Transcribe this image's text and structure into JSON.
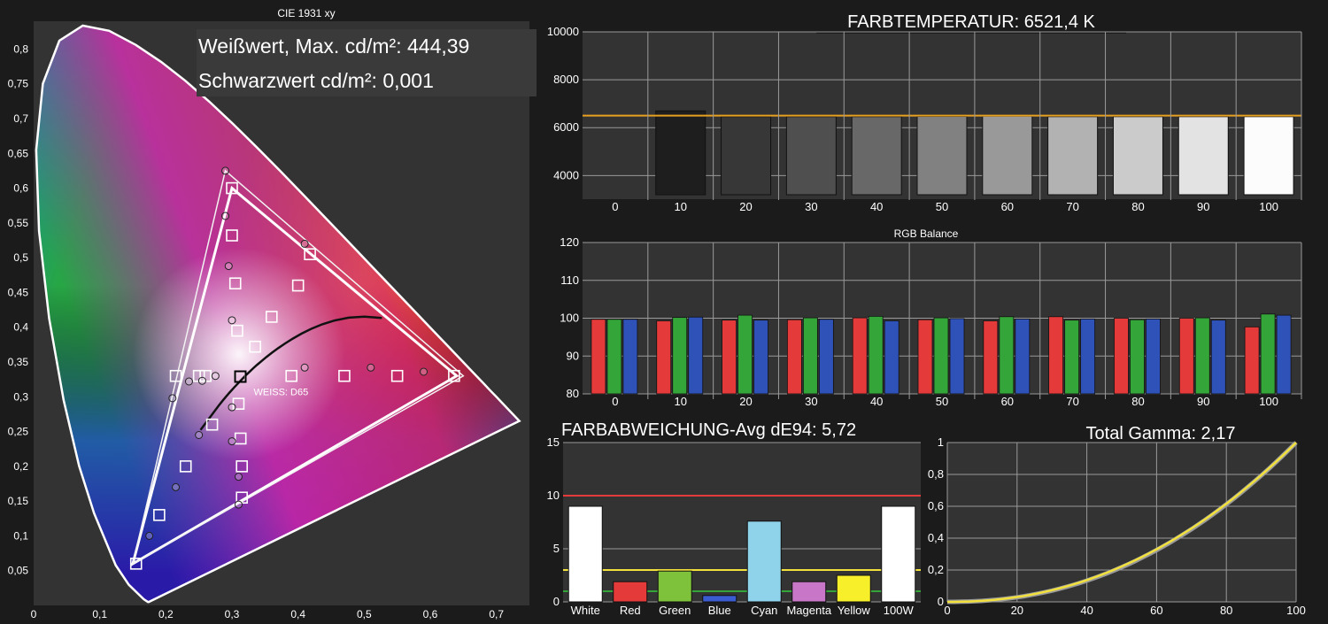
{
  "colors": {
    "bg": "#1b1b1b",
    "panel": "#333333",
    "grid": "#9a9a9a",
    "red": "#e53a3a",
    "green": "#34a538",
    "blue": "#2f52b8",
    "yellow": "#f2e13c",
    "orange": "#e8a020"
  },
  "chart_data": [
    {
      "type": "scatter",
      "title": "CIE 1931 xy",
      "annotations": [
        "Weißwert, Max. cd/m²: 444,39",
        "Schwarzwert cd/m²: 0,001",
        "WEISS: D65"
      ],
      "xlim": [
        0,
        0.75
      ],
      "ylim": [
        0,
        0.84
      ],
      "x_ticks": [
        "0",
        "0,1",
        "0,2",
        "0,3",
        "0,4",
        "0,5",
        "0,6",
        "0,7"
      ],
      "y_ticks": [
        "0,05",
        "0,1",
        "0,15",
        "0,2",
        "0,25",
        "0,3",
        "0,35",
        "0,4",
        "0,45",
        "0,5",
        "0,55",
        "0,6",
        "0,65",
        "0,7",
        "0,75",
        "0,8"
      ],
      "gamut_reference": [
        [
          0.64,
          0.33
        ],
        [
          0.3,
          0.6
        ],
        [
          0.15,
          0.06
        ]
      ],
      "gamut_measured": [
        [
          0.65,
          0.33
        ],
        [
          0.29,
          0.625
        ],
        [
          0.15,
          0.06
        ]
      ],
      "targets": [
        [
          0.3,
          0.6
        ],
        [
          0.3,
          0.532
        ],
        [
          0.305,
          0.463
        ],
        [
          0.308,
          0.395
        ],
        [
          0.312,
          0.329
        ],
        [
          0.4,
          0.46
        ],
        [
          0.36,
          0.415
        ],
        [
          0.335,
          0.372
        ],
        [
          0.418,
          0.505
        ],
        [
          0.39,
          0.33
        ],
        [
          0.47,
          0.33
        ],
        [
          0.55,
          0.33
        ],
        [
          0.636,
          0.33
        ],
        [
          0.27,
          0.26
        ],
        [
          0.31,
          0.29
        ],
        [
          0.313,
          0.24
        ],
        [
          0.315,
          0.2
        ],
        [
          0.315,
          0.155
        ],
        [
          0.23,
          0.2
        ],
        [
          0.19,
          0.13
        ],
        [
          0.155,
          0.06
        ],
        [
          0.215,
          0.33
        ],
        [
          0.25,
          0.33
        ],
        [
          0.26,
          0.33
        ]
      ],
      "measured": [
        [
          0.29,
          0.625
        ],
        [
          0.29,
          0.56
        ],
        [
          0.295,
          0.488
        ],
        [
          0.3,
          0.41
        ],
        [
          0.41,
          0.52
        ],
        [
          0.41,
          0.342
        ],
        [
          0.51,
          0.342
        ],
        [
          0.59,
          0.336
        ],
        [
          0.21,
          0.298
        ],
        [
          0.235,
          0.322
        ],
        [
          0.255,
          0.323
        ],
        [
          0.275,
          0.33
        ],
        [
          0.3,
          0.285
        ],
        [
          0.3,
          0.236
        ],
        [
          0.31,
          0.185
        ],
        [
          0.31,
          0.145
        ],
        [
          0.25,
          0.245
        ],
        [
          0.215,
          0.17
        ],
        [
          0.175,
          0.1
        ]
      ],
      "white_point": [
        0.3127,
        0.329
      ]
    },
    {
      "type": "bar",
      "title": "FARBTEMPERATUR: 6521,4 K",
      "categories": [
        "0",
        "10",
        "20",
        "30",
        "40",
        "50",
        "60",
        "70",
        "80",
        "90",
        "100"
      ],
      "values": [
        null,
        6700,
        6460,
        6460,
        6460,
        6470,
        6480,
        6460,
        6460,
        6460,
        6460
      ],
      "target": 6504,
      "ylim": [
        3200,
        10000
      ],
      "y_ticks": [
        "4000",
        "6000",
        "8000",
        "10000"
      ]
    },
    {
      "type": "bar",
      "title": "RGB Balance",
      "categories": [
        "0",
        "10",
        "20",
        "30",
        "40",
        "50",
        "60",
        "70",
        "80",
        "90",
        "100"
      ],
      "series": [
        {
          "values": [
            99.7,
            99.3,
            99.5,
            99.6,
            100.1,
            99.6,
            99.3,
            100.4,
            100.0,
            100.0,
            97.7
          ]
        },
        {
          "values": [
            99.7,
            100.2,
            100.8,
            100.1,
            100.5,
            100.1,
            100.4,
            99.5,
            99.6,
            100.1,
            101.1
          ]
        },
        {
          "values": [
            99.7,
            100.3,
            99.5,
            99.7,
            99.3,
            99.9,
            99.8,
            99.8,
            99.8,
            99.5,
            100.8
          ]
        }
      ],
      "ylim": [
        80,
        120
      ],
      "y_ticks": [
        "80",
        "90",
        "100",
        "110",
        "120"
      ]
    },
    {
      "type": "bar",
      "title": "FARBABWEICHUNG-Avg dE94: 5,72",
      "categories": [
        "White",
        "Red",
        "Green",
        "Blue",
        "Cyan",
        "Magenta",
        "Yellow",
        "100W"
      ],
      "values": [
        9.0,
        1.9,
        2.9,
        0.6,
        7.6,
        1.9,
        2.5,
        9.0
      ],
      "thresholds": [
        10,
        3,
        1
      ],
      "ylim": [
        0,
        15
      ],
      "y_ticks": [
        "0",
        "5",
        "10",
        "15"
      ]
    },
    {
      "type": "line",
      "title": "Total Gamma: 2,17",
      "xlim": [
        0,
        100
      ],
      "ylim": [
        0,
        1
      ],
      "x_ticks": [
        "0",
        "20",
        "40",
        "60",
        "80",
        "100"
      ],
      "y_ticks": [
        "0",
        "0,2",
        "0,4",
        "0,6",
        "0,8",
        "1"
      ],
      "reference_gamma": 2.2,
      "measured_gamma": 2.17
    }
  ]
}
